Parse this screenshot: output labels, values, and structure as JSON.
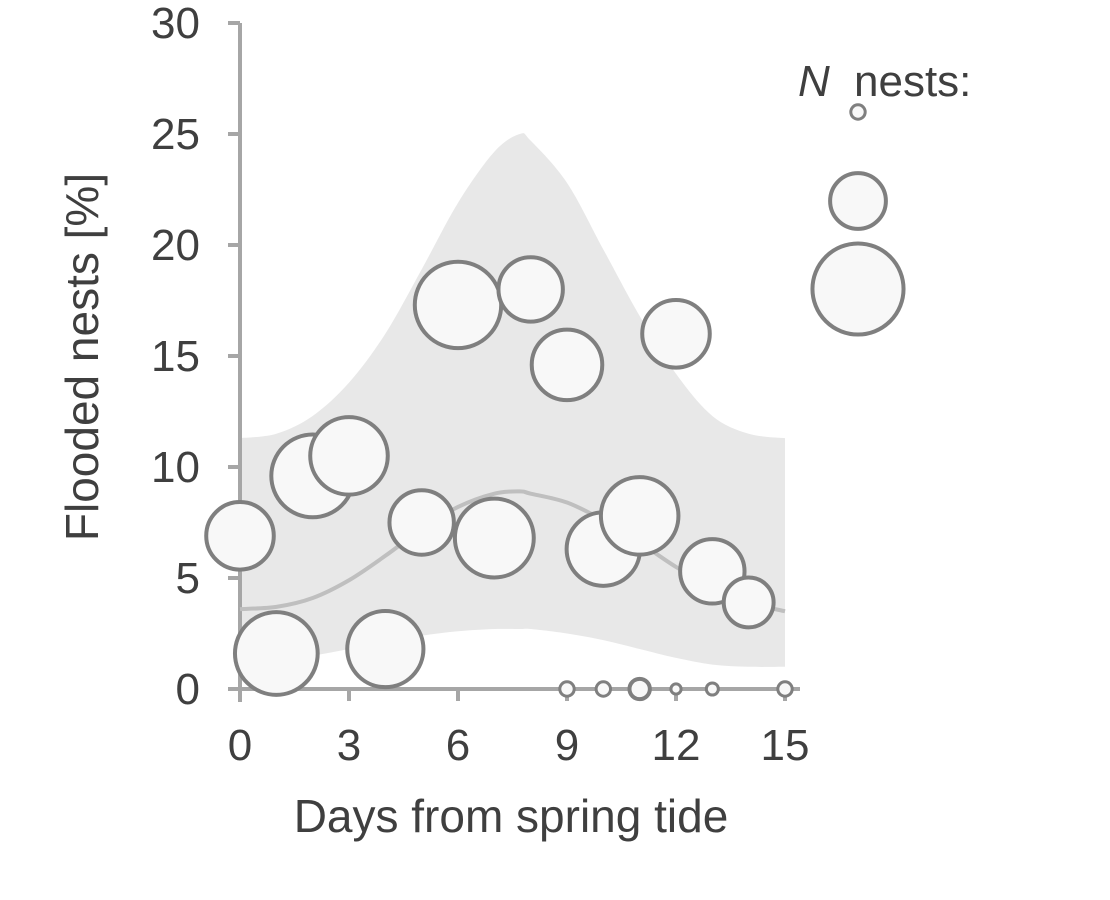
{
  "chart_data": {
    "type": "scatter",
    "title": "",
    "xlabel": "Days from spring tide",
    "ylabel": "Flooded nests [%]",
    "xlim": [
      0,
      15
    ],
    "ylim": [
      0,
      30
    ],
    "xticks": [
      "0",
      "3",
      "6",
      "9",
      "12",
      "15"
    ],
    "yticks": [
      "0",
      "5",
      "10",
      "15",
      "20",
      "25",
      "30"
    ],
    "grid": false,
    "legend": {
      "title_italic": "N",
      "title_rest": "nests:",
      "placement": "top-right",
      "size_examples": [
        {
          "n": 1
        },
        {
          "n": 15
        },
        {
          "n": 40
        }
      ]
    },
    "colors": {
      "axis": "#a6a6a6",
      "ribbon": "#e8e8e8",
      "fit_line": "#bfbfbf",
      "marker_fill": "#f8f8f8",
      "marker_stroke": "#7f7f7f",
      "text": "#3f3f3f"
    },
    "fit_curve": {
      "x": [
        0,
        1,
        2,
        3,
        4,
        5,
        6,
        7,
        7.7,
        8,
        9,
        10,
        11,
        12,
        13,
        14,
        15
      ],
      "y": [
        3.6,
        3.7,
        4.1,
        4.9,
        6.0,
        7.2,
        8.2,
        8.8,
        8.9,
        8.8,
        8.4,
        7.6,
        6.6,
        5.5,
        4.6,
        3.9,
        3.5
      ]
    },
    "ci_band": {
      "x": [
        0,
        1,
        2,
        3,
        4,
        5,
        6,
        7,
        7.7,
        8,
        9,
        10,
        11,
        12,
        13,
        14,
        15
      ],
      "lower": [
        1.2,
        1.3,
        1.5,
        1.8,
        2.1,
        2.4,
        2.6,
        2.7,
        2.7,
        2.7,
        2.5,
        2.2,
        1.8,
        1.4,
        1.1,
        1.0,
        1.0
      ],
      "upper": [
        11.3,
        11.5,
        12.3,
        13.8,
        16.0,
        18.9,
        21.9,
        24.2,
        25.0,
        24.7,
        22.8,
        19.8,
        16.8,
        14.2,
        12.3,
        11.5,
        11.3
      ]
    },
    "points": [
      {
        "x": 0,
        "y": 6.9,
        "n": 22
      },
      {
        "x": 1,
        "y": 1.6,
        "n": 33
      },
      {
        "x": 2,
        "y": 9.6,
        "n": 33
      },
      {
        "x": 3,
        "y": 10.5,
        "n": 29
      },
      {
        "x": 4,
        "y": 1.8,
        "n": 28
      },
      {
        "x": 5,
        "y": 7.5,
        "n": 20
      },
      {
        "x": 6,
        "y": 17.3,
        "n": 36
      },
      {
        "x": 7,
        "y": 6.8,
        "n": 30
      },
      {
        "x": 8,
        "y": 18.0,
        "n": 20
      },
      {
        "x": 9,
        "y": 14.6,
        "n": 24
      },
      {
        "x": 9,
        "y": 0.0,
        "n": 1
      },
      {
        "x": 10,
        "y": 6.3,
        "n": 26
      },
      {
        "x": 10,
        "y": 0.0,
        "n": 1
      },
      {
        "x": 11,
        "y": 7.8,
        "n": 29
      },
      {
        "x": 11,
        "y": 0.0,
        "n": 2
      },
      {
        "x": 12,
        "y": 16.0,
        "n": 22
      },
      {
        "x": 12,
        "y": 0.0,
        "n": 0.5
      },
      {
        "x": 13,
        "y": 5.3,
        "n": 20
      },
      {
        "x": 13,
        "y": 0.0,
        "n": 0.7
      },
      {
        "x": 14,
        "y": 3.9,
        "n": 12
      },
      {
        "x": 15,
        "y": 0.0,
        "n": 1
      }
    ]
  }
}
